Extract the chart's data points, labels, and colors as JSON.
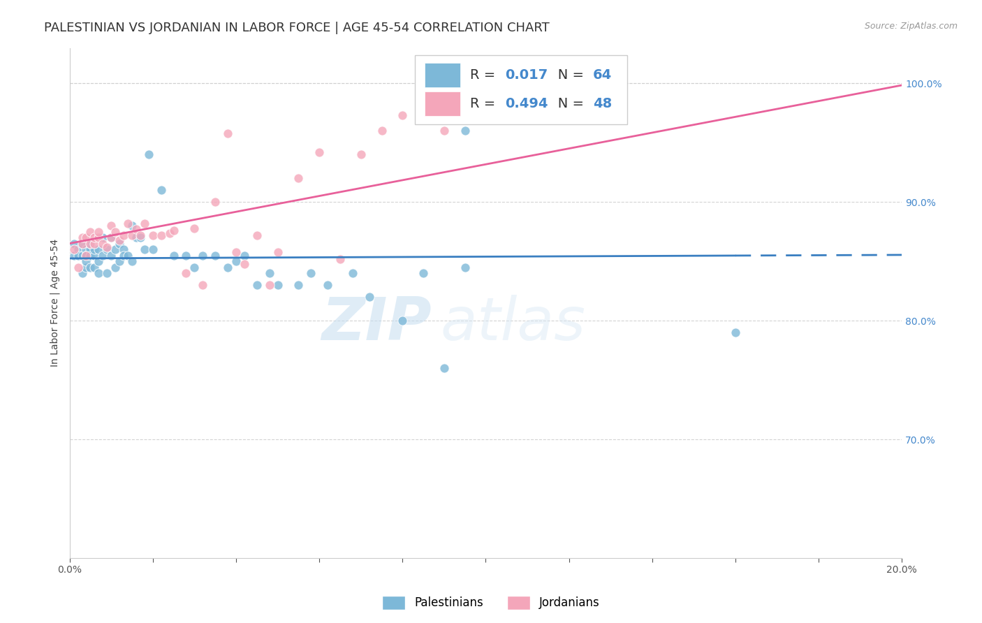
{
  "title": "PALESTINIAN VS JORDANIAN IN LABOR FORCE | AGE 45-54 CORRELATION CHART",
  "source": "Source: ZipAtlas.com",
  "ylabel": "In Labor Force | Age 45-54",
  "xlim": [
    0.0,
    0.2
  ],
  "ylim": [
    0.6,
    1.03
  ],
  "legend_r_blue": "0.017",
  "legend_n_blue": "64",
  "legend_r_pink": "0.494",
  "legend_n_pink": "48",
  "blue_color": "#7db8d8",
  "pink_color": "#f4a6ba",
  "trend_blue_color": "#3a7fc1",
  "trend_pink_color": "#e8609a",
  "blue_points_x": [
    0.001,
    0.001,
    0.002,
    0.002,
    0.003,
    0.003,
    0.003,
    0.004,
    0.004,
    0.004,
    0.004,
    0.005,
    0.005,
    0.005,
    0.005,
    0.006,
    0.006,
    0.006,
    0.007,
    0.007,
    0.007,
    0.008,
    0.008,
    0.009,
    0.009,
    0.01,
    0.01,
    0.011,
    0.011,
    0.012,
    0.012,
    0.013,
    0.013,
    0.014,
    0.015,
    0.015,
    0.016,
    0.017,
    0.018,
    0.019,
    0.02,
    0.022,
    0.025,
    0.028,
    0.03,
    0.032,
    0.035,
    0.038,
    0.04,
    0.042,
    0.045,
    0.048,
    0.05,
    0.055,
    0.058,
    0.062,
    0.068,
    0.072,
    0.08,
    0.085,
    0.09,
    0.095,
    0.16,
    0.095
  ],
  "blue_points_y": [
    0.855,
    0.865,
    0.86,
    0.855,
    0.855,
    0.865,
    0.84,
    0.86,
    0.855,
    0.845,
    0.85,
    0.86,
    0.855,
    0.845,
    0.865,
    0.855,
    0.845,
    0.86,
    0.86,
    0.85,
    0.84,
    0.855,
    0.87,
    0.86,
    0.84,
    0.855,
    0.87,
    0.845,
    0.86,
    0.85,
    0.865,
    0.86,
    0.855,
    0.855,
    0.88,
    0.85,
    0.87,
    0.87,
    0.86,
    0.94,
    0.86,
    0.91,
    0.855,
    0.855,
    0.845,
    0.855,
    0.855,
    0.845,
    0.85,
    0.855,
    0.83,
    0.84,
    0.83,
    0.83,
    0.84,
    0.83,
    0.84,
    0.82,
    0.8,
    0.84,
    0.76,
    0.845,
    0.79,
    0.96
  ],
  "pink_points_x": [
    0.001,
    0.002,
    0.003,
    0.003,
    0.004,
    0.004,
    0.005,
    0.005,
    0.006,
    0.006,
    0.007,
    0.007,
    0.008,
    0.009,
    0.01,
    0.01,
    0.011,
    0.012,
    0.013,
    0.014,
    0.015,
    0.016,
    0.017,
    0.018,
    0.02,
    0.022,
    0.024,
    0.025,
    0.028,
    0.03,
    0.032,
    0.035,
    0.038,
    0.04,
    0.042,
    0.045,
    0.048,
    0.05,
    0.055,
    0.06,
    0.065,
    0.07,
    0.075,
    0.08,
    0.09,
    0.1,
    0.11,
    0.13
  ],
  "pink_points_y": [
    0.86,
    0.845,
    0.865,
    0.87,
    0.855,
    0.87,
    0.865,
    0.875,
    0.865,
    0.87,
    0.87,
    0.875,
    0.865,
    0.862,
    0.87,
    0.88,
    0.875,
    0.868,
    0.872,
    0.882,
    0.872,
    0.877,
    0.872,
    0.882,
    0.872,
    0.872,
    0.874,
    0.876,
    0.84,
    0.878,
    0.83,
    0.9,
    0.958,
    0.858,
    0.848,
    0.872,
    0.83,
    0.858,
    0.92,
    0.942,
    0.852,
    0.94,
    0.96,
    0.973,
    0.96,
    0.978,
    0.984,
    1.005
  ],
  "watermark_zip": "ZIP",
  "watermark_atlas": "atlas",
  "background_color": "#ffffff",
  "grid_color": "#d0d0d0",
  "title_fontsize": 13,
  "axis_label_fontsize": 10,
  "tick_fontsize": 10,
  "right_tick_color": "#4488cc"
}
